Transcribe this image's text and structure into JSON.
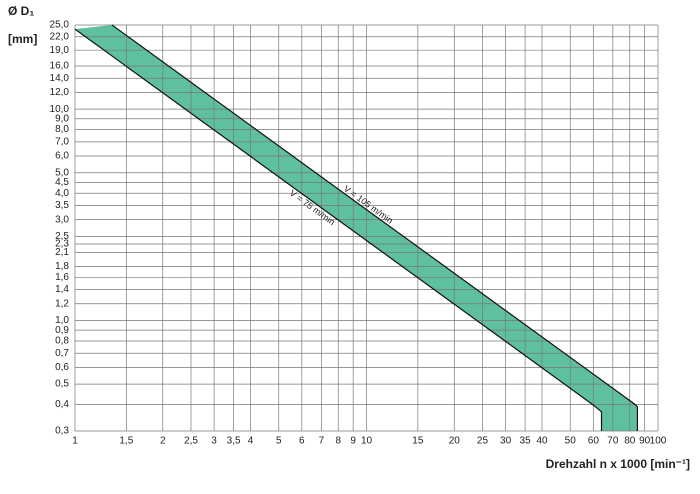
{
  "chart_data": {
    "type": "band",
    "y_label": [
      "Ø D₁",
      "[mm]"
    ],
    "x_label": "Drehzahl n x 1000 [min⁻¹]",
    "annotations": [
      "V = 105 m/min",
      "V = 75 m/min"
    ],
    "log_x": true,
    "log_y": true,
    "grid": true,
    "color": "#5fc0a0",
    "series": [
      {
        "name": "V = 75 m/min",
        "color": "#111111",
        "x": [
          1,
          59.7,
          64,
          64
        ],
        "values": [
          23.9,
          0.4,
          0.37,
          0.3
        ]
      },
      {
        "name": "V = 105 m/min",
        "color": "#111111",
        "x": [
          1.34,
          83.6,
          85,
          85
        ],
        "values": [
          25,
          0.4,
          0.39,
          0.3
        ]
      }
    ],
    "xlim": [
      1,
      100
    ],
    "ylim": [
      0.3,
      25
    ],
    "xticks": [
      1,
      {
        "value": 1.5,
        "label": "1,5"
      },
      2,
      {
        "value": 2.5,
        "label": "2,5"
      },
      3,
      {
        "value": 3.5,
        "label": "3,5"
      },
      4,
      5,
      6,
      7,
      8,
      9,
      10,
      15,
      20,
      25,
      30,
      35,
      40,
      50,
      60,
      70,
      80,
      90,
      100
    ],
    "yticks": [
      {
        "value": 25,
        "label": "25,0"
      },
      {
        "value": 22,
        "label": "22,0"
      },
      {
        "value": 19,
        "label": "19,0"
      },
      {
        "value": 16,
        "label": "16,0"
      },
      {
        "value": 14,
        "label": "14,0"
      },
      {
        "value": 12,
        "label": "12,0"
      },
      {
        "value": 10,
        "label": "10,0"
      },
      {
        "value": 9,
        "label": "9,0"
      },
      {
        "value": 8,
        "label": "8,0"
      },
      {
        "value": 7,
        "label": "7,0"
      },
      {
        "value": 6,
        "label": "6,0"
      },
      {
        "value": 5,
        "label": "5,0"
      },
      {
        "value": 4.5,
        "label": "4,5"
      },
      {
        "value": 4,
        "label": "4,0"
      },
      {
        "value": 3.5,
        "label": "3,5"
      },
      {
        "value": 3,
        "label": "3,0"
      },
      {
        "value": 2.5,
        "label": "2,5"
      },
      {
        "value": 2.3,
        "label": "2,3"
      },
      {
        "value": 2.1,
        "label": "2,1"
      },
      {
        "value": 1.8,
        "label": "1,8"
      },
      {
        "value": 1.6,
        "label": "1,6"
      },
      {
        "value": 1.4,
        "label": "1,4"
      },
      {
        "value": 1.2,
        "label": "1,2"
      },
      {
        "value": 1,
        "label": "1,0"
      },
      {
        "value": 0.9,
        "label": "0,9"
      },
      {
        "value": 0.8,
        "label": "0,8"
      },
      {
        "value": 0.7,
        "label": "0,7"
      },
      {
        "value": 0.6,
        "label": "0,6"
      },
      {
        "value": 0.5,
        "label": "0,5"
      },
      {
        "value": 0.4,
        "label": "0,4"
      },
      {
        "value": 0.3,
        "label": "0,3"
      }
    ]
  }
}
